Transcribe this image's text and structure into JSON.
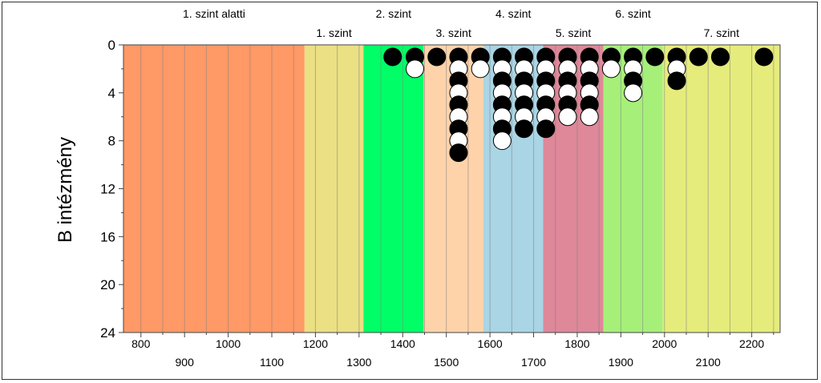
{
  "chart_data": {
    "type": "scatter",
    "ylabel": "B intézmény",
    "xlim": [
      760,
      2265
    ],
    "ylim": [
      24,
      0
    ],
    "y_ticks": [
      0,
      4,
      8,
      12,
      16,
      20,
      24
    ],
    "x_ticks_upper": [
      "800",
      "1000",
      "1200",
      "1400",
      "1600",
      "1800",
      "2000",
      "2200"
    ],
    "x_ticks_lower": [
      "900",
      "1100",
      "1300",
      "1500",
      "1700",
      "1900",
      "2100"
    ],
    "levels": [
      {
        "label": "1. szint alatti",
        "from": 760,
        "to": 1175,
        "color": "#FF9966",
        "label_row": "top"
      },
      {
        "label": "1. szint",
        "from": 1175,
        "to": 1310,
        "color": "#EBE083",
        "label_row": "bottom"
      },
      {
        "label": "2. szint",
        "from": 1310,
        "to": 1448,
        "color": "#00FF66",
        "label_row": "top"
      },
      {
        "label": "3. szint",
        "from": 1448,
        "to": 1585,
        "color": "#FFD3AA",
        "label_row": "bottom"
      },
      {
        "label": "4. szint",
        "from": 1585,
        "to": 1722,
        "color": "#A9D5E5",
        "label_row": "top"
      },
      {
        "label": "5. szint",
        "from": 1722,
        "to": 1860,
        "color": "#DE8899",
        "label_row": "bottom"
      },
      {
        "label": "6. szint",
        "from": 1860,
        "to": 1996,
        "color": "#A6F07A",
        "label_row": "top"
      },
      {
        "label": "7. szint",
        "from": 1996,
        "to": 2265,
        "color": "#E6EC7C",
        "label_row": "bottom"
      }
    ],
    "point_colors": {
      "filled": "#000000",
      "open": "#FFFFFF"
    },
    "points": [
      {
        "x": 1377,
        "y": 1,
        "fill": "filled"
      },
      {
        "x": 1428,
        "y": 1,
        "fill": "filled"
      },
      {
        "x": 1428,
        "y": 2,
        "fill": "open"
      },
      {
        "x": 1478,
        "y": 1,
        "fill": "filled"
      },
      {
        "x": 1528,
        "y": 1,
        "fill": "filled"
      },
      {
        "x": 1528,
        "y": 2,
        "fill": "open"
      },
      {
        "x": 1528,
        "y": 3,
        "fill": "filled"
      },
      {
        "x": 1528,
        "y": 4,
        "fill": "open"
      },
      {
        "x": 1528,
        "y": 5,
        "fill": "filled"
      },
      {
        "x": 1528,
        "y": 6,
        "fill": "open"
      },
      {
        "x": 1528,
        "y": 7,
        "fill": "filled"
      },
      {
        "x": 1528,
        "y": 8,
        "fill": "open"
      },
      {
        "x": 1528,
        "y": 9,
        "fill": "filled"
      },
      {
        "x": 1578,
        "y": 1,
        "fill": "filled"
      },
      {
        "x": 1578,
        "y": 2,
        "fill": "open"
      },
      {
        "x": 1628,
        "y": 1,
        "fill": "filled"
      },
      {
        "x": 1628,
        "y": 2,
        "fill": "open"
      },
      {
        "x": 1628,
        "y": 3,
        "fill": "filled"
      },
      {
        "x": 1628,
        "y": 4,
        "fill": "open"
      },
      {
        "x": 1628,
        "y": 5,
        "fill": "filled"
      },
      {
        "x": 1628,
        "y": 6,
        "fill": "open"
      },
      {
        "x": 1628,
        "y": 7,
        "fill": "filled"
      },
      {
        "x": 1628,
        "y": 8,
        "fill": "open"
      },
      {
        "x": 1678,
        "y": 1,
        "fill": "filled"
      },
      {
        "x": 1678,
        "y": 2,
        "fill": "open"
      },
      {
        "x": 1678,
        "y": 3,
        "fill": "filled"
      },
      {
        "x": 1678,
        "y": 4,
        "fill": "open"
      },
      {
        "x": 1678,
        "y": 5,
        "fill": "filled"
      },
      {
        "x": 1678,
        "y": 6,
        "fill": "open"
      },
      {
        "x": 1678,
        "y": 7,
        "fill": "filled"
      },
      {
        "x": 1728,
        "y": 1,
        "fill": "filled"
      },
      {
        "x": 1728,
        "y": 2,
        "fill": "open"
      },
      {
        "x": 1728,
        "y": 3,
        "fill": "filled"
      },
      {
        "x": 1728,
        "y": 4,
        "fill": "open"
      },
      {
        "x": 1728,
        "y": 5,
        "fill": "filled"
      },
      {
        "x": 1728,
        "y": 6,
        "fill": "open"
      },
      {
        "x": 1728,
        "y": 7,
        "fill": "filled"
      },
      {
        "x": 1778,
        "y": 1,
        "fill": "filled"
      },
      {
        "x": 1778,
        "y": 2,
        "fill": "open"
      },
      {
        "x": 1778,
        "y": 3,
        "fill": "filled"
      },
      {
        "x": 1778,
        "y": 4,
        "fill": "open"
      },
      {
        "x": 1778,
        "y": 5,
        "fill": "filled"
      },
      {
        "x": 1778,
        "y": 6,
        "fill": "open"
      },
      {
        "x": 1828,
        "y": 1,
        "fill": "filled"
      },
      {
        "x": 1828,
        "y": 2,
        "fill": "open"
      },
      {
        "x": 1828,
        "y": 3,
        "fill": "filled"
      },
      {
        "x": 1828,
        "y": 4,
        "fill": "open"
      },
      {
        "x": 1828,
        "y": 5,
        "fill": "filled"
      },
      {
        "x": 1828,
        "y": 6,
        "fill": "open"
      },
      {
        "x": 1878,
        "y": 1,
        "fill": "filled"
      },
      {
        "x": 1878,
        "y": 2,
        "fill": "open"
      },
      {
        "x": 1928,
        "y": 1,
        "fill": "filled"
      },
      {
        "x": 1928,
        "y": 2,
        "fill": "open"
      },
      {
        "x": 1928,
        "y": 3,
        "fill": "filled"
      },
      {
        "x": 1928,
        "y": 4,
        "fill": "open"
      },
      {
        "x": 1978,
        "y": 1,
        "fill": "filled"
      },
      {
        "x": 2028,
        "y": 1,
        "fill": "filled"
      },
      {
        "x": 2028,
        "y": 2,
        "fill": "open"
      },
      {
        "x": 2028,
        "y": 3,
        "fill": "filled"
      },
      {
        "x": 2078,
        "y": 1,
        "fill": "filled"
      },
      {
        "x": 2128,
        "y": 1,
        "fill": "filled"
      },
      {
        "x": 2228,
        "y": 1,
        "fill": "filled"
      }
    ]
  }
}
